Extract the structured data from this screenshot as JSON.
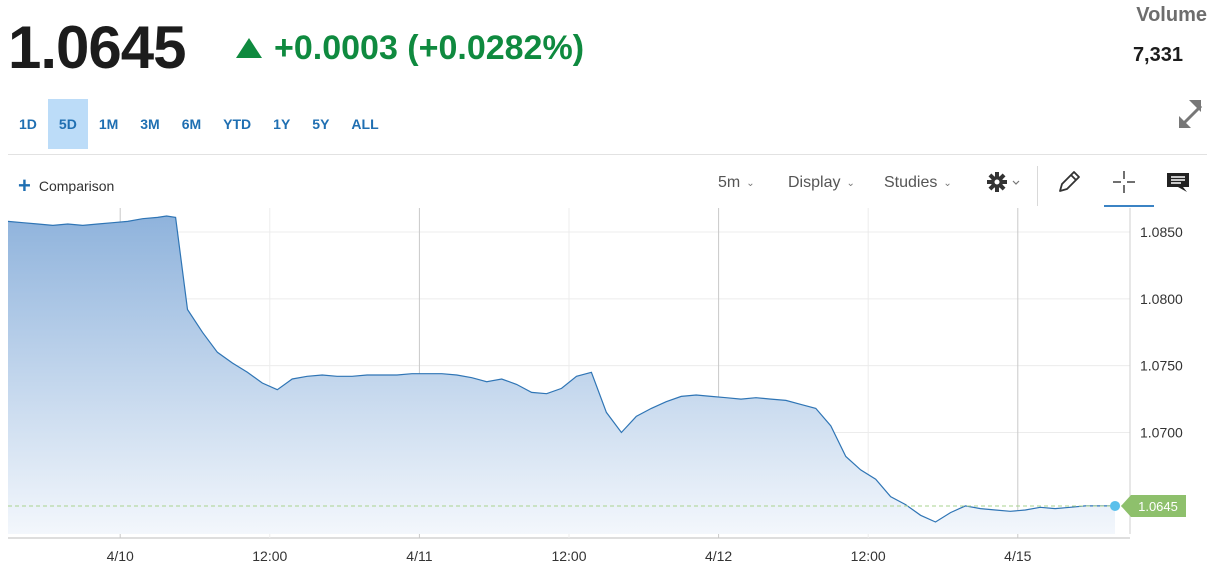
{
  "quote": {
    "price": "1.0645",
    "change": "+0.0003 (+0.0282%)",
    "direction": "up",
    "volume_label": "Volume",
    "volume_value": "7,331"
  },
  "ranges": [
    {
      "label": "1D",
      "active": false
    },
    {
      "label": "5D",
      "active": true
    },
    {
      "label": "1M",
      "active": false
    },
    {
      "label": "3M",
      "active": false
    },
    {
      "label": "6M",
      "active": false
    },
    {
      "label": "YTD",
      "active": false
    },
    {
      "label": "1Y",
      "active": false
    },
    {
      "label": "5Y",
      "active": false
    },
    {
      "label": "ALL",
      "active": false
    }
  ],
  "toolbar": {
    "comparison": "Comparison",
    "interval": "5m",
    "display": "Display",
    "studies": "Studies",
    "icons": [
      "gear-icon",
      "pencil-icon",
      "crosshair-icon",
      "comment-icon",
      "expand-icon"
    ]
  },
  "colors": {
    "positive": "#0f8a3f",
    "accent": "#1f6fb2",
    "line": "#2f75b5",
    "area_top": "#8fb3dc",
    "area_bottom": "#f3f7fc",
    "last_price_tag": "#8ec06c",
    "last_dot": "#5bc0eb"
  },
  "chart_data": {
    "type": "area",
    "title": "",
    "xlabel": "",
    "ylabel": "",
    "x_ticks": [
      "4/10",
      "12:00",
      "4/11",
      "12:00",
      "4/12",
      "12:00",
      "4/15"
    ],
    "y_ticks": [
      "1.0850",
      "1.0800",
      "1.0750",
      "1.0700"
    ],
    "ylim": [
      1.0624,
      1.0868
    ],
    "grid": true,
    "last_price": "1.0645",
    "series": [
      {
        "x": [
          0,
          0.05,
          0.1,
          0.15,
          0.2,
          0.25,
          0.3,
          0.35,
          0.4,
          0.45,
          0.5,
          0.53,
          0.56,
          0.6,
          0.65,
          0.7,
          0.75,
          0.8,
          0.85,
          0.9,
          0.95,
          1.0,
          1.05,
          1.1,
          1.15,
          1.2,
          1.25,
          1.3,
          1.35,
          1.4,
          1.45,
          1.5,
          1.55,
          1.6,
          1.65,
          1.7,
          1.75,
          1.8,
          1.85,
          1.9,
          1.95,
          2.0,
          2.05,
          2.1,
          2.15,
          2.2,
          2.25,
          2.3,
          2.35,
          2.4,
          2.45,
          2.5,
          2.55,
          2.6,
          2.65,
          2.7,
          2.75,
          2.8,
          2.85,
          2.9,
          2.95,
          3.0,
          3.05,
          3.1,
          3.15,
          3.2,
          3.25,
          3.3,
          3.35,
          3.4,
          3.45,
          3.5,
          3.55,
          3.6,
          3.65,
          3.7
        ],
        "values": [
          1.0858,
          1.0857,
          1.0856,
          1.0855,
          1.0856,
          1.0855,
          1.0856,
          1.0857,
          1.0858,
          1.086,
          1.0861,
          1.0862,
          1.0861,
          1.0792,
          1.0775,
          1.076,
          1.0752,
          1.0745,
          1.0737,
          1.0732,
          1.074,
          1.0742,
          1.0743,
          1.0742,
          1.0742,
          1.0743,
          1.0743,
          1.0743,
          1.0744,
          1.0744,
          1.0744,
          1.0743,
          1.0741,
          1.0738,
          1.074,
          1.0736,
          1.073,
          1.0729,
          1.0733,
          1.0742,
          1.0745,
          1.0715,
          1.07,
          1.0712,
          1.0718,
          1.0723,
          1.0727,
          1.0728,
          1.0727,
          1.0726,
          1.0725,
          1.0726,
          1.0725,
          1.0724,
          1.0721,
          1.0718,
          1.0705,
          1.0682,
          1.0672,
          1.0665,
          1.0652,
          1.0646,
          1.0638,
          1.0633,
          1.064,
          1.0645,
          1.0643,
          1.0642,
          1.0641,
          1.0642,
          1.0644,
          1.0643,
          1.0644,
          1.0645,
          1.0645,
          1.0645
        ],
        "name": ""
      }
    ]
  }
}
